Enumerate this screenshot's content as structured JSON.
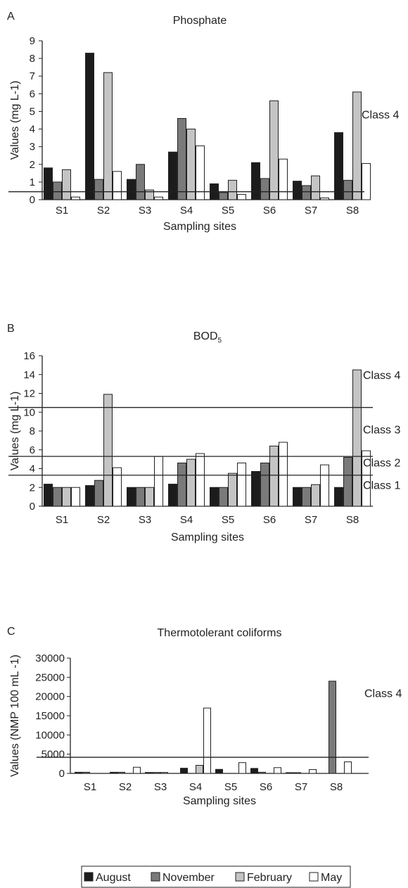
{
  "legend": [
    {
      "name": "August",
      "color": "#1c1c1c"
    },
    {
      "name": "November",
      "color": "#7a7a7a"
    },
    {
      "name": "February",
      "color": "#c4c4c4"
    },
    {
      "name": "May",
      "color": "#ffffff"
    }
  ],
  "chart_data": [
    {
      "panel": "A",
      "type": "bar",
      "title": "Phosphate",
      "ylabel": "Values (mg L-1)",
      "xlabel": "Sampling sites",
      "categories": [
        "S1",
        "S2",
        "S3",
        "S4",
        "S5",
        "S6",
        "S7",
        "S8"
      ],
      "yticks": [
        "0",
        "1",
        "2",
        "3",
        "4",
        "5",
        "6",
        "7",
        "8",
        "9"
      ],
      "ylim": [
        0,
        9
      ],
      "series": [
        {
          "name": "August",
          "values": [
            1.8,
            8.3,
            1.15,
            2.7,
            0.9,
            2.1,
            1.05,
            3.8
          ]
        },
        {
          "name": "November",
          "values": [
            1.0,
            1.15,
            2.0,
            4.6,
            0.4,
            1.2,
            0.8,
            1.1
          ]
        },
        {
          "name": "February",
          "values": [
            1.7,
            7.2,
            0.55,
            4.0,
            1.1,
            5.6,
            1.35,
            6.1
          ]
        },
        {
          "name": "May",
          "values": [
            0.15,
            1.6,
            0.15,
            3.05,
            0.3,
            2.3,
            0.1,
            2.05
          ]
        }
      ],
      "thresholds": [
        {
          "value": 0.45,
          "label": "Class 4",
          "label_value": 4.8
        }
      ]
    },
    {
      "panel": "B",
      "type": "bar",
      "title": "BOD",
      "title_sub": "5",
      "ylabel": "Values (mg L-1)",
      "xlabel": "Sampling sites",
      "categories": [
        "S1",
        "S2",
        "S3",
        "S4",
        "S5",
        "S6",
        "S7",
        "S8"
      ],
      "yticks": [
        "0",
        "2",
        "4",
        "6",
        "8",
        "10",
        "12",
        "14",
        "16"
      ],
      "ylim": [
        0,
        16
      ],
      "series": [
        {
          "name": "August",
          "values": [
            2.35,
            2.2,
            2.0,
            2.35,
            2.0,
            3.7,
            2.0,
            2.0
          ]
        },
        {
          "name": "November",
          "values": [
            2.0,
            2.75,
            2.0,
            4.6,
            2.0,
            4.6,
            2.0,
            5.2
          ]
        },
        {
          "name": "February",
          "values": [
            2.0,
            11.9,
            2.0,
            5.0,
            3.5,
            6.4,
            2.3,
            14.5
          ]
        },
        {
          "name": "May",
          "values": [
            2.0,
            4.1,
            5.3,
            5.6,
            4.6,
            6.8,
            4.4,
            5.9
          ]
        }
      ],
      "thresholds": [
        {
          "value": 10.5,
          "label": "Class 4",
          "label_value": 13.9
        },
        {
          "value": 5.3,
          "label": "Class 3",
          "label_value": 8.1
        },
        {
          "value": 3.3,
          "label": "Class 2",
          "label_value": 4.6
        }
      ],
      "extra_labels": [
        {
          "label": "Class 1",
          "label_value": 2.2
        }
      ]
    },
    {
      "panel": "C",
      "type": "bar",
      "title": "Thermotolerant coliforms",
      "ylabel": "Values (NMP 100 mL -1)",
      "xlabel": "Sampling sites",
      "categories": [
        "S1",
        "S2",
        "S3",
        "S4",
        "S5",
        "S6",
        "S7",
        "S8"
      ],
      "yticks": [
        "0",
        "5000",
        "10000",
        "15000",
        "20000",
        "25000",
        "30000"
      ],
      "ylim": [
        0,
        30000
      ],
      "series": [
        {
          "name": "August",
          "values": [
            300,
            300,
            250,
            1350,
            1050,
            1300,
            200,
            0
          ]
        },
        {
          "name": "November",
          "values": [
            300,
            300,
            250,
            0,
            0,
            300,
            200,
            24000
          ]
        },
        {
          "name": "February",
          "values": [
            0,
            0,
            250,
            2100,
            0,
            0,
            0,
            0
          ]
        },
        {
          "name": "May",
          "values": [
            0,
            1600,
            0,
            17000,
            2800,
            1500,
            1000,
            3000
          ]
        }
      ],
      "thresholds": [
        {
          "value": 4200,
          "label": "Class 4",
          "label_value": 20800
        }
      ]
    }
  ]
}
